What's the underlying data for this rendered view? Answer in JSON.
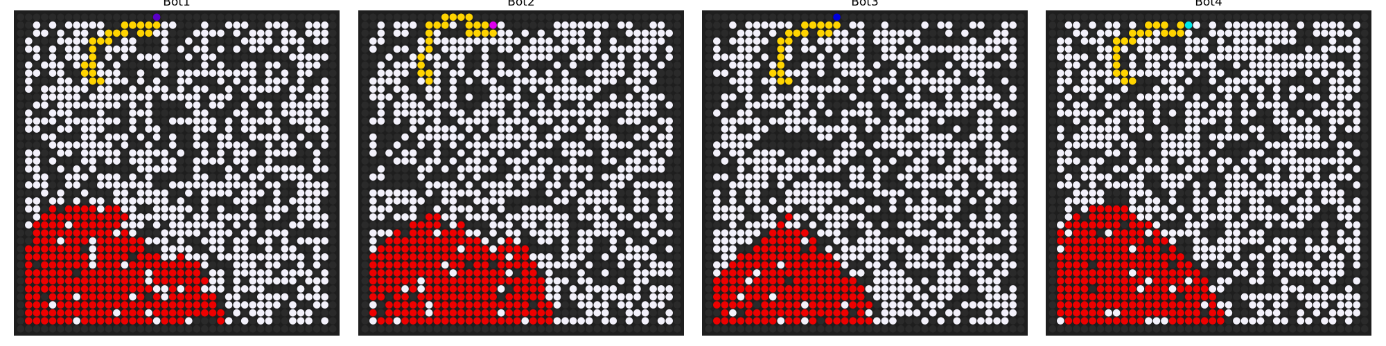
{
  "figure": {
    "grid_size": 40,
    "seed_note": "",
    "colors": {
      "background": "#1e1e1e",
      "blocked_cell": "#2a2a2a",
      "open_cell": "#f3f1fb",
      "fire_cell": "#ee0000",
      "path_cell": "#ffd400"
    },
    "panels": [
      {
        "title": "Bot1",
        "bot_color": "#5a00c8",
        "bot_cell": [
          0,
          17
        ],
        "path": [
          [
            0,
            17
          ],
          [
            1,
            17
          ],
          [
            1,
            16
          ],
          [
            2,
            16
          ],
          [
            2,
            15
          ],
          [
            1,
            15
          ],
          [
            1,
            14
          ],
          [
            1,
            13
          ],
          [
            2,
            13
          ],
          [
            2,
            12
          ],
          [
            2,
            11
          ],
          [
            3,
            11
          ],
          [
            3,
            10
          ],
          [
            3,
            9
          ],
          [
            4,
            9
          ],
          [
            5,
            9
          ],
          [
            6,
            9
          ],
          [
            6,
            8
          ],
          [
            7,
            8
          ],
          [
            7,
            9
          ],
          [
            8,
            9
          ],
          [
            8,
            10
          ]
        ],
        "fire": {
          "profile": [
            [
              28,
              1
            ],
            [
              26,
              2
            ],
            [
              25,
              3
            ],
            [
              24,
              4
            ],
            [
              24,
              5
            ],
            [
              24,
              6
            ],
            [
              24,
              7
            ],
            [
              24,
              8
            ],
            [
              24,
              9
            ],
            [
              24,
              10
            ],
            [
              24,
              11
            ],
            [
              24,
              12
            ],
            [
              25,
              13
            ],
            [
              26,
              14
            ],
            [
              28,
              15
            ],
            [
              29,
              16
            ],
            [
              30,
              17
            ],
            [
              31,
              18
            ],
            [
              31,
              19
            ],
            [
              30,
              20
            ],
            [
              30,
              21
            ],
            [
              31,
              22
            ],
            [
              33,
              23
            ],
            [
              35,
              24
            ],
            [
              37,
              25
            ]
          ],
          "density": 0.86
        }
      },
      {
        "title": "Bot2",
        "bot_color": "#dd00ee",
        "bot_cell": [
          1,
          16
        ],
        "path": [
          [
            1,
            16
          ],
          [
            2,
            16
          ],
          [
            2,
            15
          ],
          [
            1,
            15
          ],
          [
            1,
            14
          ],
          [
            2,
            14
          ],
          [
            2,
            13
          ],
          [
            1,
            13
          ],
          [
            0,
            13
          ],
          [
            0,
            12
          ],
          [
            0,
            11
          ],
          [
            0,
            10
          ],
          [
            1,
            10
          ],
          [
            1,
            9
          ],
          [
            1,
            8
          ],
          [
            2,
            8
          ],
          [
            3,
            8
          ],
          [
            4,
            8
          ],
          [
            5,
            7
          ],
          [
            6,
            7
          ],
          [
            7,
            7
          ],
          [
            7,
            8
          ],
          [
            8,
            8
          ]
        ],
        "fire": {
          "profile": [
            [
              30,
              1
            ],
            [
              29,
              2
            ],
            [
              28,
              3
            ],
            [
              27,
              4
            ],
            [
              27,
              5
            ],
            [
              26,
              6
            ],
            [
              25,
              7
            ],
            [
              25,
              8
            ],
            [
              25,
              9
            ],
            [
              26,
              10
            ],
            [
              26,
              11
            ],
            [
              26,
              12
            ],
            [
              27,
              13
            ],
            [
              28,
              14
            ],
            [
              29,
              15
            ],
            [
              30,
              16
            ],
            [
              29,
              17
            ],
            [
              28,
              18
            ],
            [
              28,
              19
            ],
            [
              29,
              20
            ],
            [
              31,
              21
            ],
            [
              33,
              22
            ],
            [
              35,
              23
            ]
          ],
          "density": 0.87
        }
      },
      {
        "title": "Bot3",
        "bot_color": "#0000dd",
        "bot_cell": [
          0,
          16
        ],
        "path": [
          [
            0,
            16
          ],
          [
            1,
            16
          ],
          [
            1,
            15
          ],
          [
            2,
            15
          ],
          [
            2,
            14
          ],
          [
            1,
            14
          ],
          [
            1,
            13
          ],
          [
            1,
            12
          ],
          [
            2,
            12
          ],
          [
            2,
            11
          ],
          [
            2,
            10
          ],
          [
            3,
            10
          ],
          [
            3,
            9
          ],
          [
            4,
            9
          ],
          [
            5,
            9
          ],
          [
            6,
            9
          ],
          [
            7,
            8
          ],
          [
            7,
            9
          ],
          [
            8,
            9
          ],
          [
            8,
            10
          ]
        ],
        "fire": {
          "profile": [
            [
              29,
              6
            ],
            [
              28,
              7
            ],
            [
              27,
              8
            ],
            [
              26,
              9
            ],
            [
              25,
              10
            ],
            [
              26,
              11
            ],
            [
              27,
              12
            ],
            [
              28,
              13
            ],
            [
              29,
              14
            ],
            [
              30,
              15
            ],
            [
              31,
              16
            ],
            [
              32,
              17
            ],
            [
              33,
              18
            ],
            [
              34,
              19
            ],
            [
              36,
              20
            ],
            [
              38,
              21
            ]
          ],
          "density": 0.9
        },
        "fire_left": {
          "profile": [
            [
              33,
              1
            ],
            [
              32,
              2
            ],
            [
              31,
              3
            ],
            [
              30,
              4
            ],
            [
              30,
              5
            ]
          ],
          "density": 0.85
        }
      },
      {
        "title": "Bot4",
        "bot_color": "#00e8e8",
        "bot_cell": [
          1,
          17
        ],
        "path": [
          [
            1,
            17
          ],
          [
            1,
            16
          ],
          [
            2,
            16
          ],
          [
            2,
            15
          ],
          [
            2,
            14
          ],
          [
            1,
            14
          ],
          [
            1,
            13
          ],
          [
            1,
            12
          ],
          [
            2,
            12
          ],
          [
            2,
            11
          ],
          [
            2,
            10
          ],
          [
            3,
            10
          ],
          [
            3,
            9
          ],
          [
            3,
            8
          ],
          [
            4,
            8
          ],
          [
            5,
            8
          ],
          [
            6,
            8
          ],
          [
            7,
            8
          ],
          [
            7,
            9
          ],
          [
            8,
            9
          ],
          [
            8,
            10
          ]
        ],
        "fire": {
          "profile": [
            [
              27,
              1
            ],
            [
              26,
              2
            ],
            [
              25,
              3
            ],
            [
              25,
              4
            ],
            [
              24,
              5
            ],
            [
              24,
              6
            ],
            [
              24,
              7
            ],
            [
              24,
              8
            ],
            [
              24,
              9
            ],
            [
              25,
              10
            ],
            [
              25,
              11
            ],
            [
              26,
              12
            ],
            [
              27,
              13
            ],
            [
              28,
              14
            ],
            [
              29,
              15
            ],
            [
              30,
              16
            ],
            [
              31,
              17
            ],
            [
              32,
              18
            ],
            [
              33,
              19
            ],
            [
              35,
              20
            ],
            [
              37,
              21
            ]
          ],
          "density": 0.88
        }
      }
    ]
  }
}
